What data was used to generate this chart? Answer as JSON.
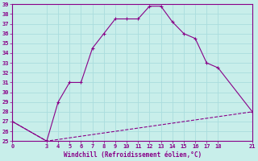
{
  "xlabel": "Windchill (Refroidissement éolien,°C)",
  "background_color": "#c8eeea",
  "grid_color": "#aadddd",
  "line_color": "#880088",
  "xlim": [
    0,
    21
  ],
  "ylim": [
    25,
    39
  ],
  "xticks": [
    0,
    3,
    4,
    5,
    6,
    7,
    8,
    9,
    10,
    11,
    12,
    13,
    14,
    15,
    16,
    17,
    18,
    21
  ],
  "yticks": [
    25,
    26,
    27,
    28,
    29,
    30,
    31,
    32,
    33,
    34,
    35,
    36,
    37,
    38,
    39
  ],
  "line1_x": [
    0,
    3,
    4,
    5,
    6,
    7,
    8,
    9,
    10,
    11,
    12,
    13,
    14,
    15,
    16,
    17,
    18,
    21
  ],
  "line1_y": [
    27,
    25,
    29,
    31,
    31,
    34.5,
    36,
    37.5,
    37.5,
    37.5,
    38.8,
    38.8,
    37.2,
    36.0,
    35.5,
    33,
    32.5,
    28
  ],
  "line2_x": [
    0,
    3,
    21
  ],
  "line2_y": [
    27,
    25,
    28
  ],
  "marker": "+"
}
